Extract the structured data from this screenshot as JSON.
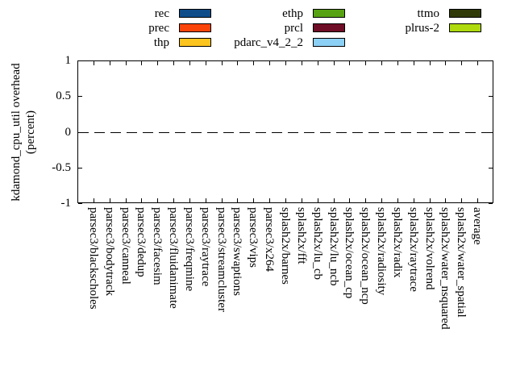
{
  "chart_data": {
    "type": "bar",
    "title": "",
    "xlabel": "",
    "ylabel": "kdamond_cpu_util overhead (percent)",
    "ylabel_lines": [
      "kdamond_cpu_util overhead",
      "(percent)"
    ],
    "ylim": [
      -1,
      1
    ],
    "yticks": [
      1,
      0.5,
      0,
      -0.5,
      -1
    ],
    "ytick_labels": [
      "1",
      "0.5",
      "0",
      "-0.5",
      "-1"
    ],
    "grid": "off",
    "zero_line_style": "dashed",
    "legend_position": "top",
    "categories": [
      "parsec3/blackscholes",
      "parsec3/bodytrack",
      "parsec3/canneal",
      "parsec3/dedup",
      "parsec3/facesim",
      "parsec3/fluidanimate",
      "parsec3/freqmine",
      "parsec3/raytrace",
      "parsec3/streamcluster",
      "parsec3/swaptions",
      "parsec3/vips",
      "parsec3/x264",
      "splash2x/barnes",
      "splash2x/fft",
      "splash2x/lu_cb",
      "splash2x/lu_ncb",
      "splash2x/ocean_cp",
      "splash2x/ocean_ncp",
      "splash2x/radiosity",
      "splash2x/radix",
      "splash2x/raytrace",
      "splash2x/volrend",
      "splash2x/water_nsquared",
      "splash2x/water_spatial",
      "average"
    ],
    "series": [
      {
        "name": "rec",
        "color": "#0e4c8a",
        "values": [
          0,
          0,
          0,
          0,
          0,
          0,
          0,
          0,
          0,
          0,
          0,
          0,
          0,
          0,
          0,
          0,
          0,
          0,
          0,
          0,
          0,
          0,
          0,
          0,
          0
        ]
      },
      {
        "name": "prec",
        "color": "#fb4409",
        "values": [
          0,
          0,
          0,
          0,
          0,
          0,
          0,
          0,
          0,
          0,
          0,
          0,
          0,
          0,
          0,
          0,
          0,
          0,
          0,
          0,
          0,
          0,
          0,
          0,
          0
        ]
      },
      {
        "name": "thp",
        "color": "#fcc41e",
        "values": [
          0,
          0,
          0,
          0,
          0,
          0,
          0,
          0,
          0,
          0,
          0,
          0,
          0,
          0,
          0,
          0,
          0,
          0,
          0,
          0,
          0,
          0,
          0,
          0,
          0
        ]
      },
      {
        "name": "ethp",
        "color": "#56a213",
        "values": [
          0,
          0,
          0,
          0,
          0,
          0,
          0,
          0,
          0,
          0,
          0,
          0,
          0,
          0,
          0,
          0,
          0,
          0,
          0,
          0,
          0,
          0,
          0,
          0,
          0
        ]
      },
      {
        "name": "prcl",
        "color": "#6f0d26",
        "values": [
          0,
          0,
          0,
          0,
          0,
          0,
          0,
          0,
          0,
          0,
          0,
          0,
          0,
          0,
          0,
          0,
          0,
          0,
          0,
          0,
          0,
          0,
          0,
          0,
          0
        ]
      },
      {
        "name": "pdarc_v4_2_2",
        "color": "#8cd0f5",
        "values": [
          0,
          0,
          0,
          0,
          0,
          0,
          0,
          0,
          0,
          0,
          0,
          0,
          0,
          0,
          0,
          0,
          0,
          0,
          0,
          0,
          0,
          0,
          0,
          0,
          0
        ]
      },
      {
        "name": "ttmo",
        "color": "#2f3a08",
        "values": [
          0,
          0,
          0,
          0,
          0,
          0,
          0,
          0,
          0,
          0,
          0,
          0,
          0,
          0,
          0,
          0,
          0,
          0,
          0,
          0,
          0,
          0,
          0,
          0,
          0
        ]
      },
      {
        "name": "plrus-2",
        "color": "#aeda0e",
        "values": [
          0,
          0,
          0,
          0,
          0,
          0,
          0,
          0,
          0,
          0,
          0,
          0,
          0,
          0,
          0,
          0,
          0,
          0,
          0,
          0,
          0,
          0,
          0,
          0,
          0
        ]
      }
    ]
  }
}
